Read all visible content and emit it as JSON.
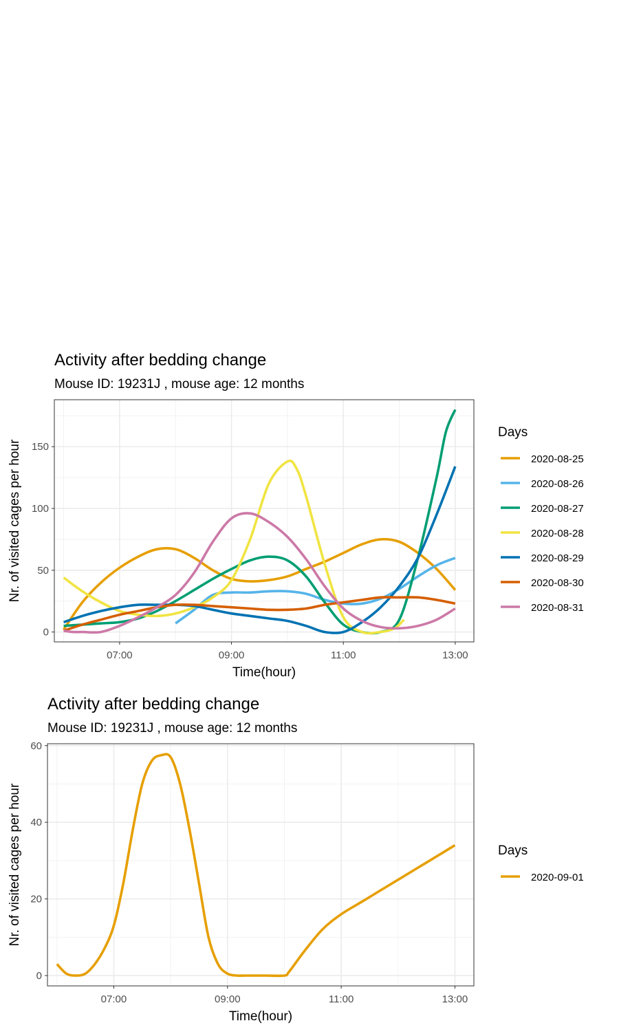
{
  "chart_data": [
    {
      "type": "line",
      "title": "Activity after bedding change",
      "subtitle": "Mouse ID:  19231J , mouse age:  12 months",
      "xlabel": "Time(hour)",
      "ylabel": "Nr. of visited cages per hour",
      "x_ticks": [
        "07:00",
        "09:00",
        "11:00",
        "13:00"
      ],
      "y_ticks": [
        "0",
        "50",
        "100",
        "150"
      ],
      "xlim": [
        "05:50",
        "13:20"
      ],
      "ylim": [
        -8,
        188
      ],
      "grid": true,
      "legend_title": "Days",
      "legend_position": "right",
      "series": [
        {
          "name": "2020-08-25",
          "color": "#E69F00",
          "x": [
            "06:00",
            "06:20",
            "06:40",
            "07:00",
            "07:20",
            "07:40",
            "08:00",
            "08:20",
            "08:40",
            "09:00",
            "09:20",
            "09:40",
            "10:00",
            "10:20",
            "10:40",
            "11:00",
            "11:20",
            "11:40",
            "12:00",
            "12:20",
            "12:40",
            "13:00"
          ],
          "y": [
            2,
            24,
            40,
            52,
            61,
            67,
            67,
            60,
            50,
            43,
            41,
            42,
            45,
            51,
            57,
            64,
            71,
            75,
            73,
            64,
            51,
            34
          ]
        },
        {
          "name": "2020-08-26",
          "color": "#56B4E9",
          "x": [
            "08:00",
            "08:20",
            "08:40",
            "09:00",
            "09:20",
            "09:40",
            "10:00",
            "10:20",
            "10:40",
            "11:00",
            "11:20",
            "11:40",
            "12:00",
            "12:20",
            "12:40",
            "13:00"
          ],
          "y": [
            7,
            18,
            30,
            32,
            32,
            33,
            33,
            31,
            26,
            23,
            23,
            27,
            35,
            45,
            54,
            60
          ]
        },
        {
          "name": "2020-08-27",
          "color": "#009E73",
          "x": [
            "06:00",
            "06:20",
            "06:40",
            "07:00",
            "07:20",
            "07:40",
            "08:00",
            "08:20",
            "08:40",
            "09:00",
            "09:20",
            "09:40",
            "10:00",
            "10:20",
            "10:40",
            "11:00",
            "11:20",
            "11:40",
            "12:00",
            "12:20",
            "12:40",
            "12:50",
            "13:00"
          ],
          "y": [
            5,
            6,
            7,
            8,
            11,
            17,
            25,
            34,
            43,
            51,
            58,
            61,
            58,
            45,
            24,
            6,
            0,
            0,
            10,
            60,
            125,
            162,
            180
          ]
        },
        {
          "name": "2020-08-28",
          "color": "#F0E442",
          "x": [
            "06:00",
            "06:20",
            "06:40",
            "07:00",
            "07:20",
            "07:40",
            "08:00",
            "08:20",
            "08:40",
            "09:00",
            "09:20",
            "09:40",
            "10:00",
            "10:10",
            "10:20",
            "10:40",
            "11:00",
            "11:20",
            "11:40",
            "11:55",
            "12:05"
          ],
          "y": [
            44,
            33,
            24,
            17,
            14,
            13,
            15,
            20,
            28,
            42,
            75,
            120,
            138,
            132,
            110,
            55,
            12,
            0,
            0,
            3,
            10
          ]
        },
        {
          "name": "2020-08-29",
          "color": "#0072B2",
          "x": [
            "06:00",
            "06:20",
            "06:40",
            "07:00",
            "07:20",
            "07:40",
            "08:00",
            "08:20",
            "08:40",
            "09:00",
            "09:20",
            "09:40",
            "10:00",
            "10:20",
            "10:40",
            "11:00",
            "11:20",
            "11:40",
            "12:00",
            "12:20",
            "12:40",
            "13:00"
          ],
          "y": [
            8,
            13,
            17,
            20,
            22,
            22,
            22,
            21,
            18,
            15,
            13,
            11,
            9,
            5,
            0,
            0,
            8,
            20,
            37,
            60,
            95,
            134
          ]
        },
        {
          "name": "2020-08-30",
          "color": "#D55E00",
          "x": [
            "06:00",
            "06:20",
            "06:40",
            "07:00",
            "07:20",
            "07:40",
            "08:00",
            "08:20",
            "08:40",
            "09:00",
            "09:20",
            "09:40",
            "10:00",
            "10:20",
            "10:40",
            "11:00",
            "11:20",
            "11:40",
            "12:00",
            "12:20",
            "12:40",
            "13:00"
          ],
          "y": [
            1,
            6,
            10,
            14,
            17,
            20,
            22,
            22,
            21,
            20,
            19,
            18,
            18,
            19,
            22,
            24,
            26,
            28,
            28,
            28,
            26,
            23
          ]
        },
        {
          "name": "2020-08-31",
          "color": "#CC79A7",
          "x": [
            "06:00",
            "06:10",
            "06:20",
            "06:40",
            "07:00",
            "07:20",
            "07:40",
            "08:00",
            "08:20",
            "08:40",
            "09:00",
            "09:20",
            "09:40",
            "10:00",
            "10:20",
            "10:40",
            "11:00",
            "11:20",
            "11:40",
            "12:00",
            "12:20",
            "12:40",
            "13:00"
          ],
          "y": [
            1,
            0,
            0,
            0,
            5,
            12,
            20,
            30,
            48,
            73,
            92,
            96,
            89,
            77,
            59,
            37,
            19,
            9,
            4,
            3,
            5,
            10,
            19
          ]
        }
      ]
    },
    {
      "type": "line",
      "title": "Activity after bedding change",
      "subtitle": "Mouse ID:  19231J , mouse age:  12 months",
      "xlabel": "Time(hour)",
      "ylabel": "Nr. of visited cages per hour",
      "x_ticks": [
        "07:00",
        "09:00",
        "11:00",
        "13:00"
      ],
      "y_ticks": [
        "0",
        "20",
        "40",
        "60"
      ],
      "xlim": [
        "05:50",
        "13:20"
      ],
      "ylim": [
        -2.7,
        60.5
      ],
      "grid": true,
      "legend_title": "Days",
      "legend_position": "right",
      "series": [
        {
          "name": "2020-09-01",
          "color": "#E69F00",
          "x": [
            "06:00",
            "06:10",
            "06:20",
            "06:30",
            "06:40",
            "06:50",
            "07:00",
            "07:10",
            "07:20",
            "07:30",
            "07:40",
            "07:50",
            "08:00",
            "08:10",
            "08:20",
            "08:30",
            "08:40",
            "08:50",
            "09:00",
            "09:10",
            "09:20",
            "09:40",
            "10:00",
            "10:05",
            "10:20",
            "10:40",
            "11:00",
            "11:20",
            "11:40",
            "12:00",
            "12:20",
            "12:40",
            "13:00"
          ],
          "y": [
            3,
            0.5,
            0,
            0.5,
            3,
            7,
            13,
            24,
            38,
            50,
            56,
            57.5,
            57,
            50,
            38,
            24,
            10,
            3,
            0.5,
            0,
            0,
            0,
            0,
            1,
            6,
            12,
            16,
            19,
            22,
            25,
            28,
            31,
            34
          ]
        }
      ]
    }
  ]
}
